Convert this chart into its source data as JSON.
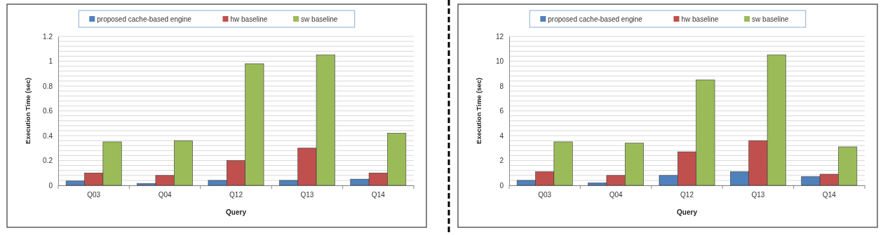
{
  "chart_data": [
    {
      "type": "bar",
      "xlabel": "Query",
      "ylabel": "Execution Time (sec)",
      "categories": [
        "Q03",
        "Q04",
        "Q12",
        "Q13",
        "Q14"
      ],
      "series": [
        {
          "name": "proposed cache-based engine",
          "color": "#4f81bd",
          "values": [
            0.035,
            0.015,
            0.04,
            0.04,
            0.05
          ]
        },
        {
          "name": "hw baseline",
          "color": "#c0504d",
          "values": [
            0.1,
            0.08,
            0.2,
            0.3,
            0.1
          ]
        },
        {
          "name": "sw baseline",
          "color": "#9bbb59",
          "values": [
            0.35,
            0.36,
            0.98,
            1.05,
            0.42
          ]
        }
      ],
      "ylim": [
        0,
        1.2
      ],
      "yticks": [
        {
          "value": 0,
          "label": "0"
        },
        {
          "value": 0.04,
          "label": null
        },
        {
          "value": 0.08,
          "label": null
        },
        {
          "value": 0.12,
          "label": null
        },
        {
          "value": 0.16,
          "label": null
        },
        {
          "value": 0.2,
          "label": "0.2"
        },
        {
          "value": 0.24,
          "label": null
        },
        {
          "value": 0.28,
          "label": null
        },
        {
          "value": 0.32,
          "label": null
        },
        {
          "value": 0.36,
          "label": null
        },
        {
          "value": 0.4,
          "label": "0.4"
        },
        {
          "value": 0.44,
          "label": null
        },
        {
          "value": 0.48,
          "label": null
        },
        {
          "value": 0.52,
          "label": null
        },
        {
          "value": 0.56,
          "label": null
        },
        {
          "value": 0.6,
          "label": "0.6"
        },
        {
          "value": 0.64,
          "label": null
        },
        {
          "value": 0.68,
          "label": null
        },
        {
          "value": 0.72,
          "label": null
        },
        {
          "value": 0.76,
          "label": null
        },
        {
          "value": 0.8,
          "label": "0.8"
        },
        {
          "value": 0.84,
          "label": null
        },
        {
          "value": 0.88,
          "label": null
        },
        {
          "value": 0.92,
          "label": null
        },
        {
          "value": 0.96,
          "label": null
        },
        {
          "value": 1,
          "label": "1"
        },
        {
          "value": 1.04,
          "label": null
        },
        {
          "value": 1.08,
          "label": null
        },
        {
          "value": 1.12,
          "label": null
        },
        {
          "value": 1.16,
          "label": null
        },
        {
          "value": 1.2,
          "label": "1.2"
        }
      ],
      "grid": "y",
      "legend": "top"
    },
    {
      "type": "bar",
      "xlabel": "Query",
      "ylabel": "Execution Time (sec)",
      "categories": [
        "Q03",
        "Q04",
        "Q12",
        "Q13",
        "Q14"
      ],
      "series": [
        {
          "name": "proposed cache-based engine",
          "color": "#4f81bd",
          "values": [
            0.4,
            0.2,
            0.8,
            1.1,
            0.7
          ]
        },
        {
          "name": "hw baseline",
          "color": "#c0504d",
          "values": [
            1.1,
            0.8,
            2.7,
            3.6,
            0.9
          ]
        },
        {
          "name": "sw baseline",
          "color": "#9bbb59",
          "values": [
            3.5,
            3.4,
            8.5,
            10.5,
            3.1
          ]
        }
      ],
      "ylim": [
        0,
        12
      ],
      "yticks": [
        {
          "value": 0,
          "label": "0"
        },
        {
          "value": 0.4,
          "label": null
        },
        {
          "value": 0.8,
          "label": null
        },
        {
          "value": 1.2,
          "label": null
        },
        {
          "value": 1.6,
          "label": null
        },
        {
          "value": 2,
          "label": "2"
        },
        {
          "value": 2.4,
          "label": null
        },
        {
          "value": 2.8,
          "label": null
        },
        {
          "value": 3.2,
          "label": null
        },
        {
          "value": 3.6,
          "label": null
        },
        {
          "value": 4,
          "label": "4"
        },
        {
          "value": 4.4,
          "label": null
        },
        {
          "value": 4.8,
          "label": null
        },
        {
          "value": 5.2,
          "label": null
        },
        {
          "value": 5.6,
          "label": null
        },
        {
          "value": 6,
          "label": "6"
        },
        {
          "value": 6.4,
          "label": null
        },
        {
          "value": 6.8,
          "label": null
        },
        {
          "value": 7.2,
          "label": null
        },
        {
          "value": 7.6,
          "label": null
        },
        {
          "value": 8,
          "label": "8"
        },
        {
          "value": 8.4,
          "label": null
        },
        {
          "value": 8.8,
          "label": null
        },
        {
          "value": 9.2,
          "label": null
        },
        {
          "value": 9.6,
          "label": null
        },
        {
          "value": 10,
          "label": "10"
        },
        {
          "value": 10.4,
          "label": null
        },
        {
          "value": 10.8,
          "label": null
        },
        {
          "value": 11.2,
          "label": null
        },
        {
          "value": 11.6,
          "label": null
        },
        {
          "value": 12,
          "label": "12"
        }
      ],
      "grid": "y",
      "legend": "top"
    }
  ]
}
